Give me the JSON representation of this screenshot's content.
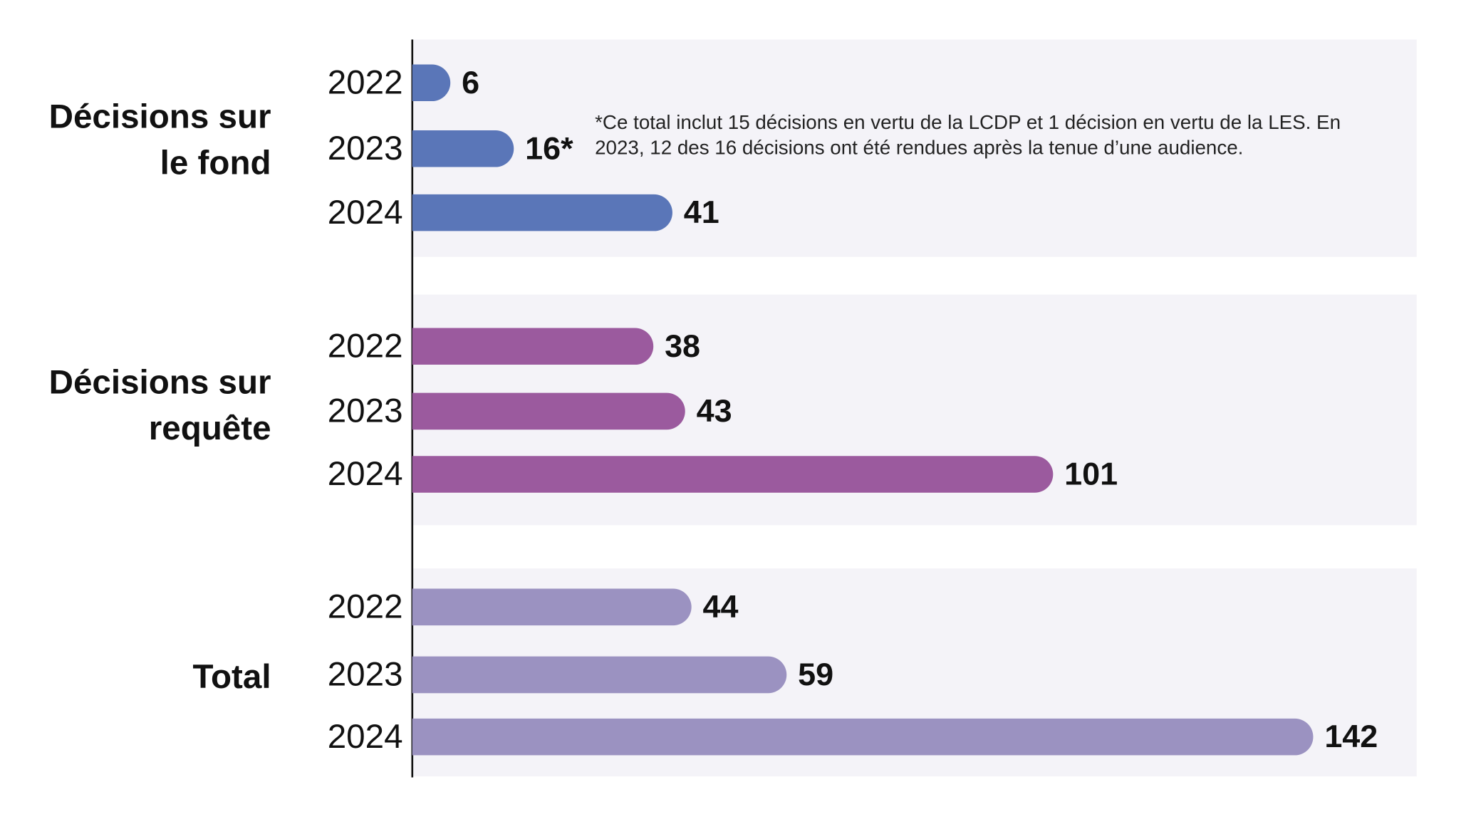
{
  "chart_data": {
    "type": "bar",
    "orientation": "horizontal",
    "categories": [
      "2022",
      "2023",
      "2024"
    ],
    "series": [
      {
        "name": "Décisions sur le fond",
        "color": "#5a76b8",
        "values": [
          6,
          16,
          41
        ],
        "value_labels": [
          "6",
          "16*",
          "41"
        ]
      },
      {
        "name": "Décisions sur requête",
        "color": "#9b5a9e",
        "values": [
          38,
          43,
          101
        ]
      },
      {
        "name": "Total",
        "color": "#9b92c1",
        "values": [
          44,
          59,
          142
        ]
      }
    ],
    "annotations": [
      "*Ce total inclut 15 décisions en vertu de la LCDP et 1 décision en vertu de la LES. En 2023, 12 des 16 décisions ont été rendues après la tenue d’une audience."
    ]
  }
}
